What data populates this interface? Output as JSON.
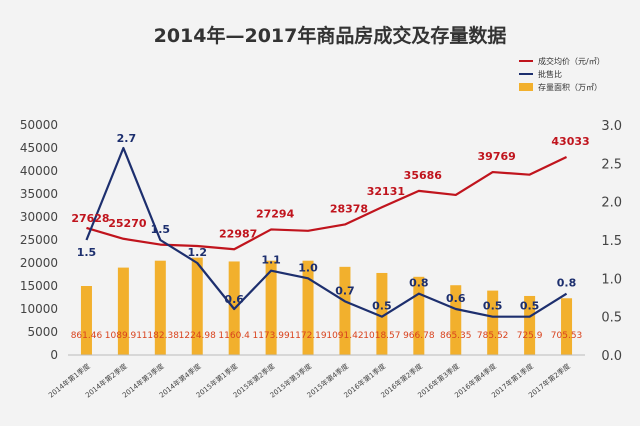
{
  "chart_data": {
    "type": "bar",
    "title": "2014年—2017年商品房成交及存量数据",
    "categories": [
      "2014年第1季度",
      "2014年第2季度",
      "2014年第3季度",
      "2014年第4季度",
      "2015年第1季度",
      "2015年第2季度",
      "2015年第3季度",
      "2015年第4季度",
      "2016年第1季度",
      "2016年第2季度",
      "2016年第3季度",
      "2016年第4季度",
      "2017年第1季度",
      "2017年第2季度"
    ],
    "y_left": {
      "ylim": [
        0,
        50000
      ],
      "ticks": [
        "0",
        "5000",
        "10000",
        "15000",
        "20000",
        "25000",
        "30000",
        "35000",
        "40000",
        "45000",
        "50000"
      ]
    },
    "y_right": {
      "ylim": [
        0,
        3.0
      ],
      "ticks": [
        "0.0",
        "0.5",
        "1.0",
        "1.5",
        "2.0",
        "2.5",
        "3.0"
      ]
    },
    "legend_position": "top-right",
    "grid": false,
    "series": [
      {
        "name": "成交均价（元/㎡）",
        "type": "line",
        "axis": "left",
        "color": "#c0141d",
        "values": [
          27628,
          25270,
          24000,
          23700,
          22987,
          27294,
          27000,
          28378,
          32131,
          35686,
          34800,
          39769,
          39200,
          43033
        ],
        "labels": [
          "27628",
          "25270",
          "",
          "",
          "22987",
          "27294",
          "",
          "28378",
          "32131",
          "35686",
          "",
          "39769",
          "",
          "43033"
        ]
      },
      {
        "name": "批售比",
        "type": "line",
        "axis": "right",
        "color": "#1d2f6e",
        "values": [
          1.5,
          2.7,
          1.5,
          1.2,
          0.6,
          1.1,
          1.0,
          0.7,
          0.5,
          0.8,
          0.6,
          0.5,
          0.5,
          0.8
        ],
        "labels": [
          "1.5",
          "2.7",
          "1.5",
          "1.2",
          "0.6",
          "1.1",
          "1.0",
          "0.7",
          "0.5",
          "0.8",
          "0.6",
          "0.5",
          "0.5",
          "0.8"
        ]
      },
      {
        "name": "存量面积（万㎡）",
        "type": "bar",
        "axis": "right",
        "color": "#f2b02d",
        "values": [
          0.9,
          1.14,
          1.23,
          1.27,
          1.22,
          1.23,
          1.23,
          1.15,
          1.07,
          1.02,
          0.91,
          0.84,
          0.77,
          0.74
        ],
        "labels": [
          "861.46",
          "1089.91",
          "1182.38",
          "1224.98",
          "1160.4",
          "1173.99",
          "1172.19",
          "1091.42",
          "1018.57",
          "966.78",
          "865.35",
          "785.52",
          "725.9",
          "705.53"
        ]
      }
    ]
  }
}
